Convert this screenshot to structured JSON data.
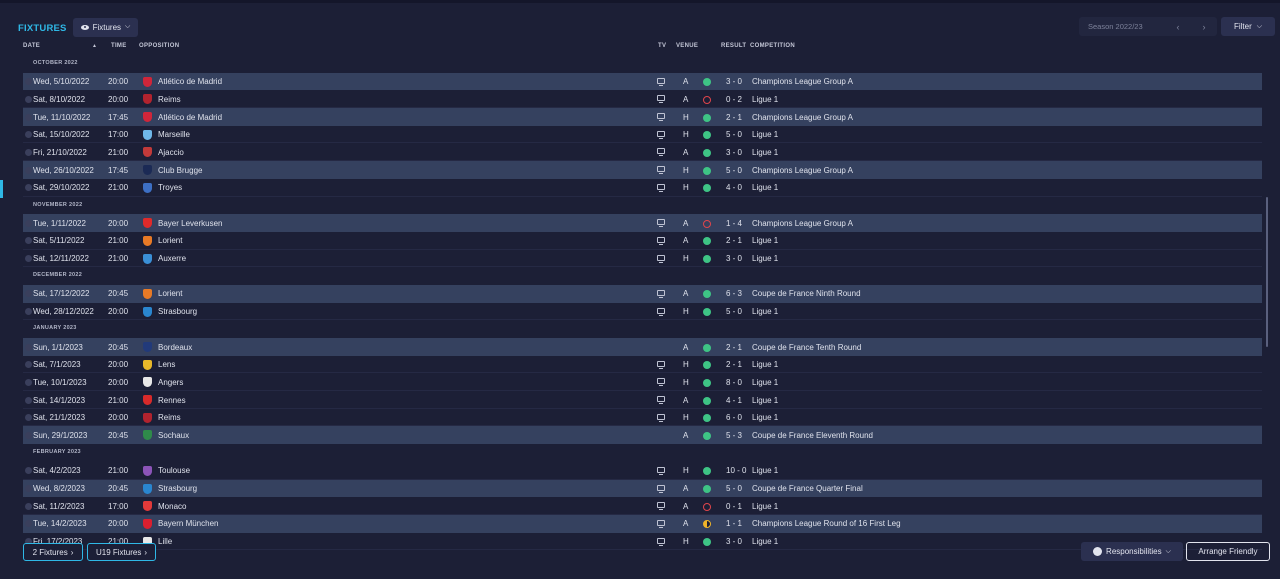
{
  "header": {
    "title": "FIXTURES",
    "view_label": "Fixtures",
    "season_label": "Season 2022/23",
    "filter_label": "Filter"
  },
  "columns": {
    "date": "DATE",
    "time": "TIME",
    "opposition": "OPPOSITION",
    "tv": "TV",
    "venue": "VENUE",
    "result": "RESULT",
    "competition": "COMPETITION"
  },
  "colors": {
    "accent": "#2fb8e6",
    "win": "#3ec485",
    "loss": "#e0454b",
    "draw": "#f0b429",
    "highlight_row": "#35415f"
  },
  "groups": [
    {
      "month": "OCTOBER 2022",
      "rows": [
        {
          "date": "Wed, 5/10/2022",
          "time": "20:00",
          "opp": "Atlético de Madrid",
          "crest": "#d0263a",
          "tv": true,
          "venue": "A",
          "outcome": "W",
          "score": "3 - 0",
          "comp": "Champions League Group A",
          "hl": true
        },
        {
          "date": "Sat, 8/10/2022",
          "time": "20:00",
          "opp": "Reims",
          "crest": "#b2232e",
          "tv": true,
          "venue": "A",
          "outcome": "L",
          "score": "0 - 2",
          "comp": "Ligue 1",
          "hl": false
        },
        {
          "date": "Tue, 11/10/2022",
          "time": "17:45",
          "opp": "Atlético de Madrid",
          "crest": "#d0263a",
          "tv": true,
          "venue": "H",
          "outcome": "W",
          "score": "2 - 1",
          "comp": "Champions League Group A",
          "hl": true
        },
        {
          "date": "Sat, 15/10/2022",
          "time": "17:00",
          "opp": "Marseille",
          "crest": "#6fb7e8",
          "tv": true,
          "venue": "H",
          "outcome": "W",
          "score": "5 - 0",
          "comp": "Ligue 1",
          "hl": false
        },
        {
          "date": "Fri, 21/10/2022",
          "time": "21:00",
          "opp": "Ajaccio",
          "crest": "#c23a3a",
          "tv": true,
          "venue": "A",
          "outcome": "W",
          "score": "3 - 0",
          "comp": "Ligue 1",
          "hl": false
        },
        {
          "date": "Wed, 26/10/2022",
          "time": "17:45",
          "opp": "Club Brugge",
          "crest": "#1b2a55",
          "tv": true,
          "venue": "H",
          "outcome": "W",
          "score": "5 - 0",
          "comp": "Champions League Group A",
          "hl": true
        },
        {
          "date": "Sat, 29/10/2022",
          "time": "21:00",
          "opp": "Troyes",
          "crest": "#3d6fc4",
          "tv": true,
          "venue": "H",
          "outcome": "W",
          "score": "4 - 0",
          "comp": "Ligue 1",
          "hl": false
        }
      ]
    },
    {
      "month": "NOVEMBER 2022",
      "rows": [
        {
          "date": "Tue, 1/11/2022",
          "time": "20:00",
          "opp": "Bayer Leverkusen",
          "crest": "#e02a2a",
          "tv": true,
          "venue": "A",
          "outcome": "L",
          "score": "1 - 4",
          "comp": "Champions League Group A",
          "hl": true
        },
        {
          "date": "Sat, 5/11/2022",
          "time": "21:00",
          "opp": "Lorient",
          "crest": "#e87a26",
          "tv": true,
          "venue": "A",
          "outcome": "W",
          "score": "2 - 1",
          "comp": "Ligue 1",
          "hl": false
        },
        {
          "date": "Sat, 12/11/2022",
          "time": "21:00",
          "opp": "Auxerre",
          "crest": "#3a8fd6",
          "tv": true,
          "venue": "H",
          "outcome": "W",
          "score": "3 - 0",
          "comp": "Ligue 1",
          "hl": false
        }
      ]
    },
    {
      "month": "DECEMBER 2022",
      "rows": [
        {
          "date": "Sat, 17/12/2022",
          "time": "20:45",
          "opp": "Lorient",
          "crest": "#e87a26",
          "tv": true,
          "venue": "A",
          "outcome": "W",
          "score": "6 - 3",
          "comp": "Coupe de France Ninth Round",
          "hl": true
        },
        {
          "date": "Wed, 28/12/2022",
          "time": "20:00",
          "opp": "Strasbourg",
          "crest": "#2a86cf",
          "tv": true,
          "venue": "H",
          "outcome": "W",
          "score": "5 - 0",
          "comp": "Ligue 1",
          "hl": false
        }
      ]
    },
    {
      "month": "JANUARY 2023",
      "rows": [
        {
          "date": "Sun, 1/1/2023",
          "time": "20:45",
          "opp": "Bordeaux",
          "crest": "#223a7a",
          "tv": false,
          "venue": "A",
          "outcome": "W",
          "score": "2 - 1",
          "comp": "Coupe de France Tenth Round",
          "hl": true
        },
        {
          "date": "Sat, 7/1/2023",
          "time": "20:00",
          "opp": "Lens",
          "crest": "#e8b82a",
          "tv": true,
          "venue": "H",
          "outcome": "W",
          "score": "2 - 1",
          "comp": "Ligue 1",
          "hl": false
        },
        {
          "date": "Tue, 10/1/2023",
          "time": "20:00",
          "opp": "Angers",
          "crest": "#e8e8e8",
          "tv": true,
          "venue": "H",
          "outcome": "W",
          "score": "8 - 0",
          "comp": "Ligue 1",
          "hl": false
        },
        {
          "date": "Sat, 14/1/2023",
          "time": "21:00",
          "opp": "Rennes",
          "crest": "#d82a2a",
          "tv": true,
          "venue": "A",
          "outcome": "W",
          "score": "4 - 1",
          "comp": "Ligue 1",
          "hl": false
        },
        {
          "date": "Sat, 21/1/2023",
          "time": "20:00",
          "opp": "Reims",
          "crest": "#b2232e",
          "tv": true,
          "venue": "H",
          "outcome": "W",
          "score": "6 - 0",
          "comp": "Ligue 1",
          "hl": false
        },
        {
          "date": "Sun, 29/1/2023",
          "time": "20:45",
          "opp": "Sochaux",
          "crest": "#2f8a4a",
          "tv": false,
          "venue": "A",
          "outcome": "W",
          "score": "5 - 3",
          "comp": "Coupe de France Eleventh Round",
          "hl": true
        }
      ]
    },
    {
      "month": "FEBRUARY 2023",
      "rows": [
        {
          "date": "Sat, 4/2/2023",
          "time": "21:00",
          "opp": "Toulouse",
          "crest": "#8c54b8",
          "tv": true,
          "venue": "H",
          "outcome": "W",
          "score": "10 - 0",
          "comp": "Ligue 1",
          "hl": false
        },
        {
          "date": "Wed, 8/2/2023",
          "time": "20:45",
          "opp": "Strasbourg",
          "crest": "#2a86cf",
          "tv": true,
          "venue": "A",
          "outcome": "W",
          "score": "5 - 0",
          "comp": "Coupe de France Quarter Final",
          "hl": true
        },
        {
          "date": "Sat, 11/2/2023",
          "time": "17:00",
          "opp": "Monaco",
          "crest": "#e23a3a",
          "tv": true,
          "venue": "A",
          "outcome": "L",
          "score": "0 - 1",
          "comp": "Ligue 1",
          "hl": false
        },
        {
          "date": "Tue, 14/2/2023",
          "time": "20:00",
          "opp": "Bayern München",
          "crest": "#dc1f2f",
          "tv": true,
          "venue": "A",
          "outcome": "D",
          "score": "1 - 1",
          "comp": "Champions League Round of 16 First Leg",
          "hl": true
        },
        {
          "date": "Fri, 17/2/2023",
          "time": "21:00",
          "opp": "Lille",
          "crest": "#e8e8e8",
          "tv": true,
          "venue": "H",
          "outcome": "W",
          "score": "3 - 0",
          "comp": "Ligue 1",
          "hl": false
        }
      ]
    }
  ],
  "footer": {
    "fixtures2_label": "2 Fixtures",
    "u19_label": "U19 Fixtures",
    "responsibilities_label": "Responsibilities",
    "arrange_label": "Arrange Friendly"
  }
}
